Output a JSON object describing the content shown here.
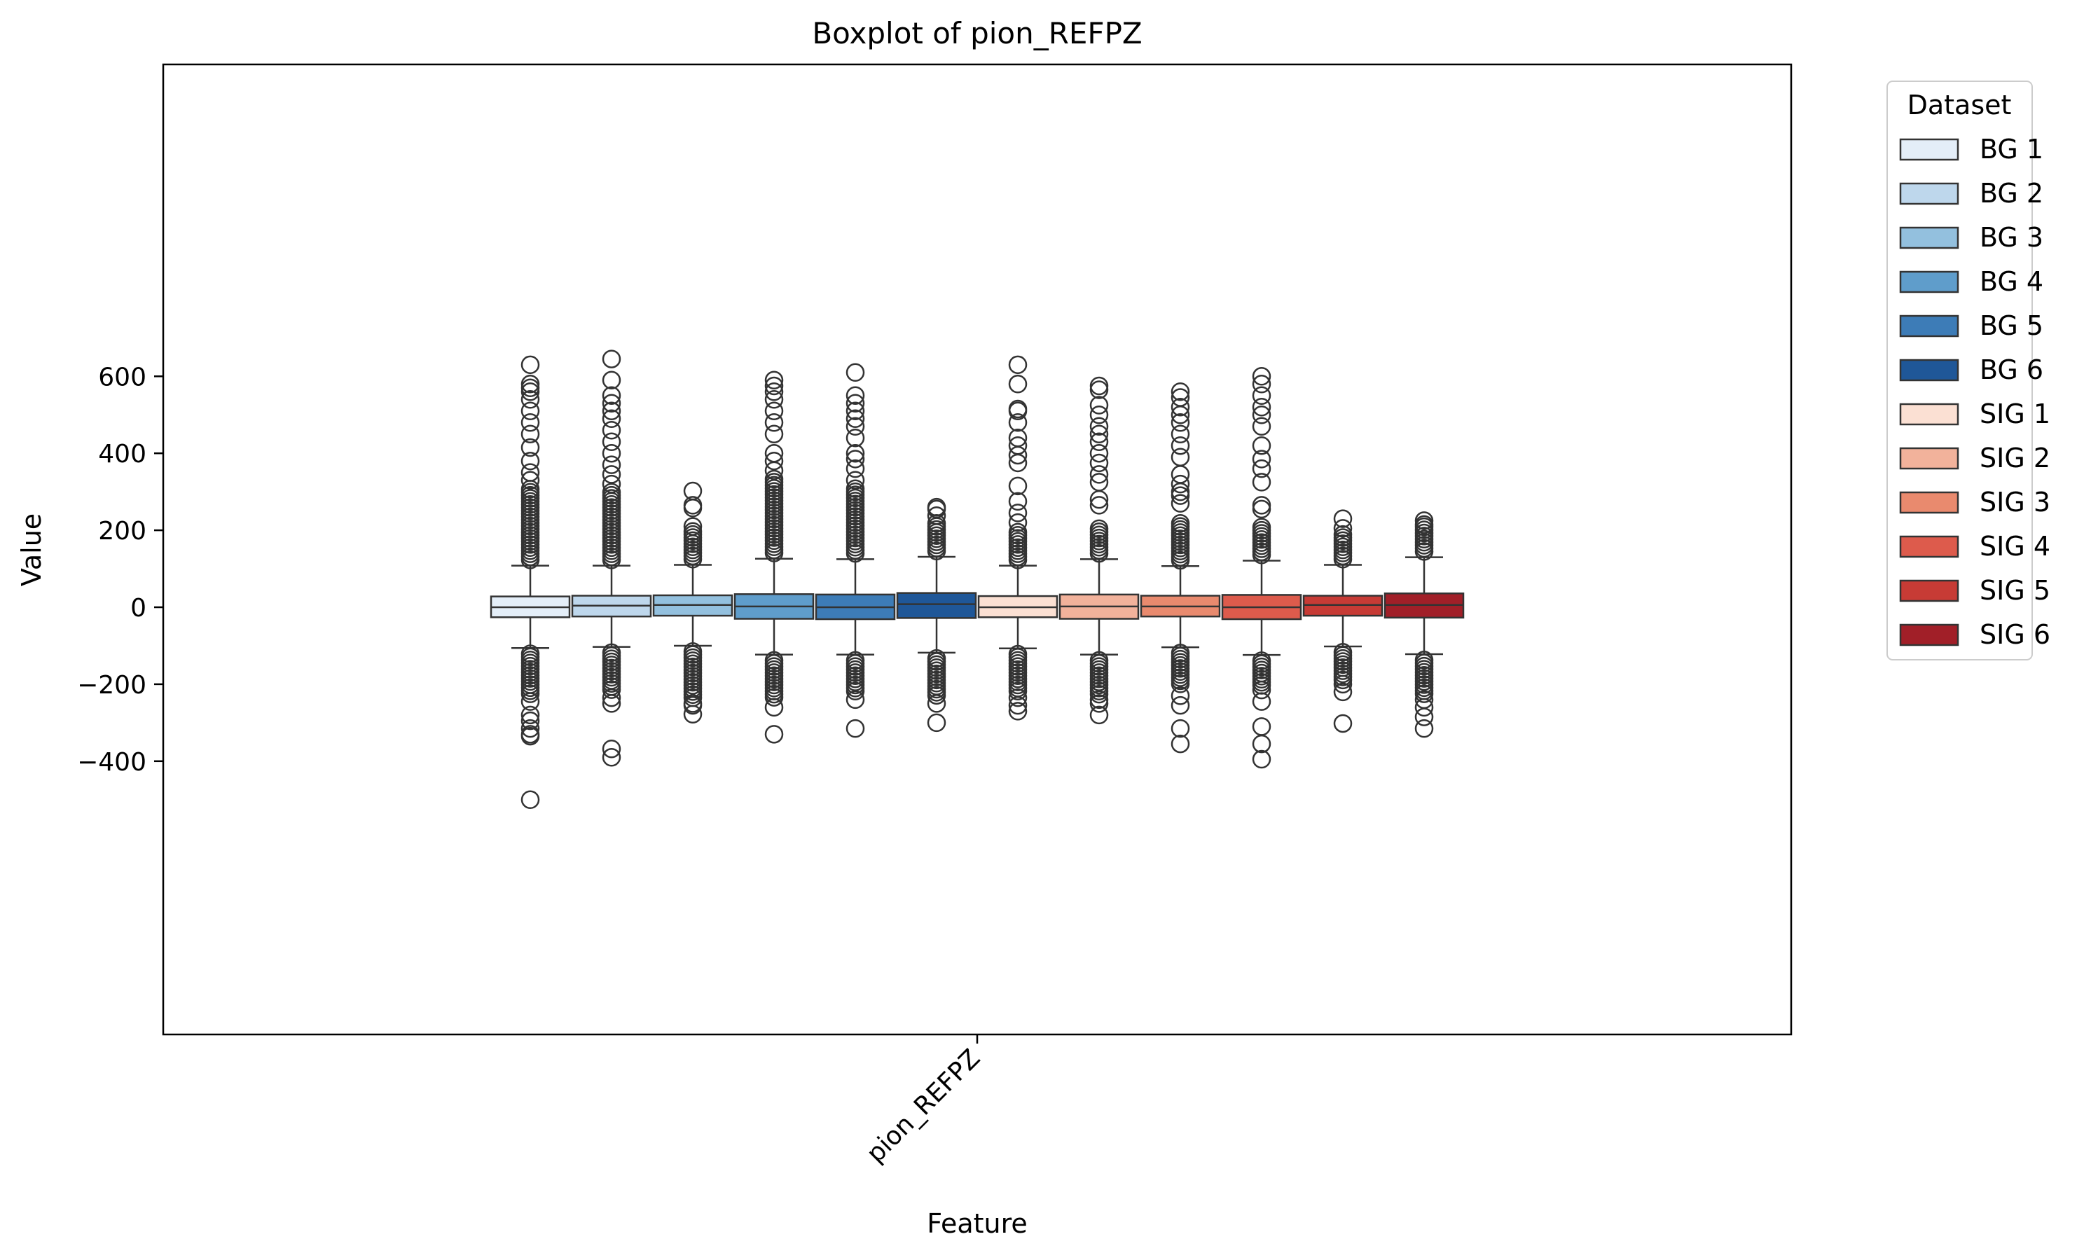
{
  "chart_data": {
    "type": "box",
    "title": "Boxplot of pion_REFPZ",
    "xlabel": "Feature",
    "ylabel": "Value",
    "categories": [
      "pion_REFPZ"
    ],
    "ylim": [
      -560,
      705
    ],
    "yticks": [
      -400,
      -200,
      0,
      200,
      400,
      600
    ],
    "grid": false,
    "legend": {
      "title": "Dataset",
      "placement": "outside-top-right"
    },
    "series": [
      {
        "name": "BG 1",
        "color": "#e4eef8",
        "q1": -26,
        "median": 0,
        "q3": 28,
        "whisker_low": -106,
        "whisker_high": 108,
        "outliers_high": {
          "dense_to": 310,
          "points": [
            330,
            350,
            380,
            415,
            450,
            480,
            510,
            540,
            560,
            570,
            580,
            630
          ]
        },
        "outliers_low": {
          "dense_to": -230,
          "points": [
            -245,
            -280,
            -295,
            -315,
            -330,
            -335,
            -500
          ]
        }
      },
      {
        "name": "BG 2",
        "color": "#bed7ec",
        "q1": -24,
        "median": 4,
        "q3": 30,
        "whisker_low": -103,
        "whisker_high": 108,
        "outliers_high": {
          "dense_to": 300,
          "points": [
            320,
            345,
            370,
            400,
            430,
            460,
            490,
            510,
            530,
            550,
            590,
            645
          ]
        },
        "outliers_low": {
          "dense_to": -220,
          "points": [
            -235,
            -250,
            -368,
            -390
          ]
        }
      },
      {
        "name": "BG 3",
        "color": "#93c0de",
        "q1": -22,
        "median": 6,
        "q3": 31,
        "whisker_low": -100,
        "whisker_high": 110,
        "outliers_high": {
          "dense_to": 200,
          "points": [
            210,
            258,
            265,
            302
          ]
        },
        "outliers_low": {
          "dense_to": -240,
          "points": [
            -250,
            -255,
            -278
          ]
        }
      },
      {
        "name": "BG 4",
        "color": "#5f9dcb",
        "q1": -30,
        "median": 2,
        "q3": 34,
        "whisker_low": -123,
        "whisker_high": 126,
        "outliers_high": {
          "dense_to": 340,
          "points": [
            355,
            380,
            400,
            450,
            480,
            510,
            540,
            560,
            575,
            590
          ]
        },
        "outliers_low": {
          "dense_to": -240,
          "points": [
            -260,
            -330
          ]
        }
      },
      {
        "name": "BG 5",
        "color": "#3d7cb7",
        "q1": -31,
        "median": 0,
        "q3": 33,
        "whisker_low": -123,
        "whisker_high": 125,
        "outliers_high": {
          "dense_to": 310,
          "points": [
            330,
            360,
            385,
            400,
            440,
            470,
            490,
            510,
            530,
            550,
            610
          ]
        },
        "outliers_low": {
          "dense_to": -225,
          "points": [
            -240,
            -315
          ]
        }
      },
      {
        "name": "BG 6",
        "color": "#1f5798",
        "q1": -28,
        "median": 8,
        "q3": 37,
        "whisker_low": -118,
        "whisker_high": 131,
        "outliers_high": {
          "dense_to": 210,
          "points": [
            218,
            238,
            255,
            260
          ]
        },
        "outliers_low": {
          "dense_to": -230,
          "points": [
            -250,
            -300
          ]
        }
      },
      {
        "name": "SIG 1",
        "color": "#fbe0d3",
        "q1": -26,
        "median": 0,
        "q3": 29,
        "whisker_low": -107,
        "whisker_high": 108,
        "outliers_high": {
          "dense_to": 200,
          "points": [
            220,
            245,
            275,
            315,
            375,
            395,
            420,
            440,
            480,
            510,
            515,
            580,
            630
          ]
        },
        "outliers_low": {
          "dense_to": -225,
          "points": [
            -235,
            -255,
            -270
          ]
        }
      },
      {
        "name": "SIG 2",
        "color": "#f2b29b",
        "q1": -30,
        "median": 2,
        "q3": 33,
        "whisker_low": -123,
        "whisker_high": 125,
        "outliers_high": {
          "dense_to": 205,
          "points": [
            265,
            280,
            325,
            345,
            375,
            400,
            430,
            450,
            470,
            500,
            525,
            565,
            575
          ]
        },
        "outliers_low": {
          "dense_to": -230,
          "points": [
            -240,
            -250,
            -280
          ]
        }
      },
      {
        "name": "SIG 3",
        "color": "#e98a6e",
        "q1": -24,
        "median": 2,
        "q3": 30,
        "whisker_low": -104,
        "whisker_high": 107,
        "outliers_high": {
          "dense_to": 225,
          "points": [
            270,
            290,
            300,
            320,
            345,
            390,
            420,
            450,
            480,
            500,
            520,
            545,
            560
          ]
        },
        "outliers_low": {
          "dense_to": -200,
          "points": [
            -230,
            -255,
            -315,
            -355
          ]
        }
      },
      {
        "name": "SIG 4",
        "color": "#dd5b4c",
        "q1": -31,
        "median": 0,
        "q3": 32,
        "whisker_low": -124,
        "whisker_high": 121,
        "outliers_high": {
          "dense_to": 215,
          "points": [
            255,
            265,
            325,
            360,
            385,
            420,
            470,
            500,
            520,
            550,
            580,
            600
          ]
        },
        "outliers_low": {
          "dense_to": -205,
          "points": [
            -215,
            -245,
            -310,
            -355,
            -395
          ]
        }
      },
      {
        "name": "SIG 5",
        "color": "#c73b35",
        "q1": -22,
        "median": 6,
        "q3": 30,
        "whisker_low": -102,
        "whisker_high": 110,
        "outliers_high": {
          "dense_to": 190,
          "points": [
            205,
            230
          ]
        },
        "outliers_low": {
          "dense_to": -190,
          "points": [
            -200,
            -220,
            -302
          ]
        }
      },
      {
        "name": "SIG 6",
        "color": "#a11f28",
        "q1": -27,
        "median": 6,
        "q3": 36,
        "whisker_low": -122,
        "whisker_high": 130,
        "outliers_high": {
          "dense_to": 210,
          "points": [
            215,
            225
          ]
        },
        "outliers_low": {
          "dense_to": -230,
          "points": [
            -240,
            -260,
            -285,
            -315
          ]
        }
      }
    ]
  }
}
